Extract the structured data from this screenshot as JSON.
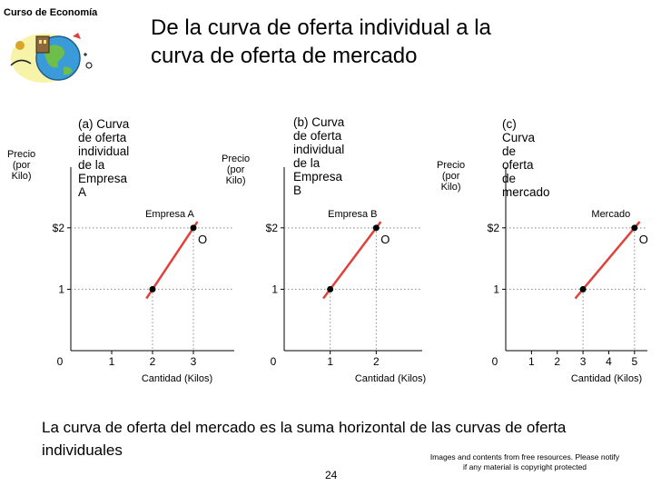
{
  "header": {
    "course_label": "Curso de Economía",
    "title_line1": "De la curva de oferta individual a la",
    "title_line2": "curva de oferta de mercado"
  },
  "chart_data": [
    {
      "type": "line",
      "title": "(a) Curva de oferta\nindividual de la\nEmpresa A",
      "ylabel": "Precio\n(por Kilo)",
      "xlabel": "Cantidad (Kilos)",
      "x_ticks": [
        "0",
        "1",
        "2",
        "3"
      ],
      "y_ticks": [
        "1",
        "$2"
      ],
      "xlim": [
        0,
        4
      ],
      "ylim": [
        0,
        2.9
      ],
      "series": [
        {
          "name": "Empresa A",
          "points": [
            [
              2,
              1
            ],
            [
              3,
              2
            ]
          ]
        }
      ],
      "curve_label": "O",
      "color": "#e0413a"
    },
    {
      "type": "line",
      "title": "(b) Curva de oferta\nindividual de la\nEmpresa B",
      "ylabel": "Precio\n(por Kilo)",
      "xlabel": "Cantidad (Kilos)",
      "x_ticks": [
        "0",
        "1",
        "2"
      ],
      "y_ticks": [
        "1",
        "$2"
      ],
      "xlim": [
        0,
        3
      ],
      "ylim": [
        0,
        2.9
      ],
      "series": [
        {
          "name": "Empresa B",
          "points": [
            [
              1,
              1
            ],
            [
              2,
              2
            ]
          ]
        }
      ],
      "curve_label": "O",
      "color": "#e0413a"
    },
    {
      "type": "line",
      "title": "(c) Curva de oferta\nde mercado",
      "ylabel": "Precio\n(por Kilo)",
      "xlabel": "Cantidad (Kilos)",
      "x_ticks": [
        "0",
        "1",
        "2",
        "3",
        "4",
        "5"
      ],
      "y_ticks": [
        "1",
        "$2"
      ],
      "xlim": [
        0,
        5.5
      ],
      "ylim": [
        0,
        2.9
      ],
      "series": [
        {
          "name": "Mercado",
          "points": [
            [
              3,
              1
            ],
            [
              5,
              2
            ]
          ]
        }
      ],
      "curve_label": "O",
      "color": "#e0413a"
    }
  ],
  "footer": {
    "summary": "La curva de oferta del mercado es la suma horizontal de las curvas de oferta individuales",
    "note": "Images and contents from free resources. Please notify if any material is copyright protected",
    "page_number": "24"
  },
  "colors": {
    "supply_line": "#e0413a",
    "guide": "#8a8a8a"
  },
  "icons": {
    "logo": "globe-clipart-icon"
  }
}
